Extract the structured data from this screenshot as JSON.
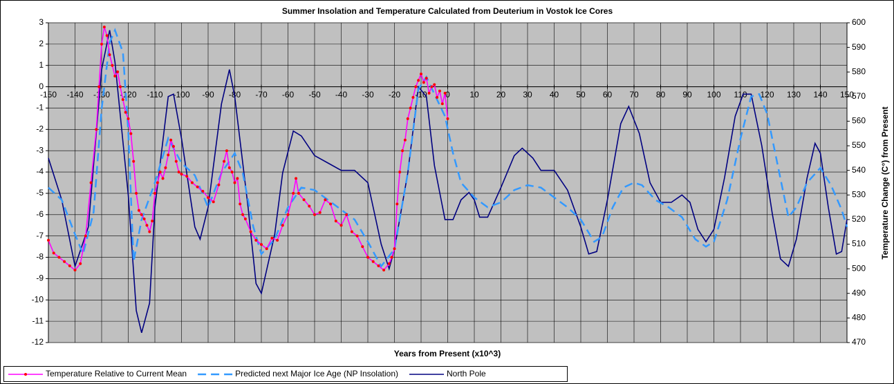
{
  "chart_data": {
    "type": "line",
    "title": "Summer Insolation and Temperature Calculated from Deuterium in Vostok Ice Cores",
    "xlabel": "Years from Present (x10^3)",
    "y2label": "Temperature Change (C°) from Present",
    "xlim": [
      -150,
      150
    ],
    "xticks": [
      -150,
      -140,
      -130,
      -120,
      -110,
      -100,
      -90,
      -80,
      -70,
      -60,
      -50,
      -40,
      -30,
      -20,
      -10,
      0,
      10,
      20,
      30,
      40,
      50,
      60,
      70,
      80,
      90,
      100,
      110,
      120,
      130,
      140,
      150
    ],
    "ylim": [
      -12,
      3
    ],
    "yticks": [
      -12,
      -11,
      -10,
      -9,
      -8,
      -7,
      -6,
      -5,
      -4,
      -3,
      -2,
      -1,
      0,
      1,
      2,
      3
    ],
    "y2lim": [
      470,
      600
    ],
    "y2ticks": [
      470,
      480,
      490,
      500,
      510,
      520,
      530,
      540,
      550,
      560,
      570,
      580,
      590,
      600
    ],
    "grid": true,
    "legend": "bottom",
    "series": [
      {
        "name": "Temperature Relative to Current Mean",
        "color": "#ff00ff",
        "marker_color": "#ff0000",
        "line_style": "solid",
        "x": [
          -150,
          -148,
          -146,
          -144,
          -142,
          -140,
          -138,
          -136,
          -134,
          -132,
          -131,
          -130,
          -129,
          -128,
          -127,
          -126,
          -125,
          -124,
          -123,
          -122,
          -121,
          -120,
          -119,
          -118,
          -117,
          -116,
          -115,
          -114,
          -113,
          -112,
          -111,
          -110,
          -109,
          -108,
          -107,
          -106,
          -105,
          -104,
          -103,
          -102,
          -101,
          -100,
          -98,
          -96,
          -94,
          -92,
          -90,
          -88,
          -86,
          -84,
          -83,
          -82,
          -81,
          -80,
          -79,
          -78,
          -77,
          -76,
          -74,
          -72,
          -70,
          -68,
          -66,
          -64,
          -62,
          -60,
          -58,
          -57,
          -56,
          -54,
          -52,
          -50,
          -48,
          -46,
          -44,
          -42,
          -40,
          -38,
          -36,
          -34,
          -32,
          -30,
          -28,
          -26,
          -24,
          -22,
          -21,
          -20,
          -19,
          -18,
          -17,
          -16,
          -15,
          -14,
          -13,
          -12,
          -11,
          -10,
          -9,
          -8,
          -7,
          -6,
          -5,
          -4,
          -3,
          -2,
          -1,
          0
        ],
        "values": [
          -7.2,
          -7.8,
          -8.0,
          -8.2,
          -8.4,
          -8.6,
          -8.3,
          -7.0,
          -4.5,
          -2.0,
          0,
          2.0,
          2.8,
          2.4,
          1.5,
          1.0,
          0.5,
          0.7,
          0,
          -0.6,
          -1.2,
          -1.5,
          -2.2,
          -3.5,
          -5.0,
          -5.8,
          -6.0,
          -6.2,
          -6.5,
          -6.8,
          -6.3,
          -5.0,
          -4.5,
          -4.0,
          -4.3,
          -3.8,
          -3.2,
          -2.5,
          -2.8,
          -3.5,
          -4.0,
          -4.1,
          -4.2,
          -4.5,
          -4.7,
          -4.9,
          -5.2,
          -5.4,
          -4.6,
          -3.5,
          -3.0,
          -3.8,
          -4.0,
          -4.5,
          -4.3,
          -5.5,
          -6.0,
          -6.2,
          -6.8,
          -7.2,
          -7.4,
          -7.6,
          -7.1,
          -7.2,
          -6.5,
          -6.0,
          -5.0,
          -4.3,
          -5.0,
          -5.3,
          -5.6,
          -6.0,
          -5.9,
          -5.3,
          -5.5,
          -6.3,
          -6.5,
          -6.0,
          -6.8,
          -7.0,
          -7.5,
          -8.0,
          -8.2,
          -8.4,
          -8.6,
          -8.3,
          -8.0,
          -7.6,
          -5.5,
          -4.0,
          -3.0,
          -2.5,
          -1.5,
          -1.0,
          -0.5,
          0,
          0.3,
          0.6,
          0.2,
          0.4,
          -0.3,
          0.0,
          0.1,
          -0.5,
          -0.2,
          -0.8,
          -0.3,
          -1.5
        ]
      },
      {
        "name": "Predicted next Major Ice Age (NP Insolation)",
        "color": "#3399ff",
        "line_style": "dashed",
        "axis": "y2",
        "x": [
          -150,
          -145,
          -140,
          -137,
          -133,
          -130,
          -127,
          -125,
          -122,
          -120,
          -118,
          -115,
          -110,
          -105,
          -100,
          -95,
          -90,
          -85,
          -80,
          -77,
          -73,
          -70,
          -65,
          -60,
          -55,
          -50,
          -45,
          -40,
          -35,
          -30,
          -25,
          -20,
          -15,
          -11,
          -8,
          -5,
          -1,
          2,
          5,
          10,
          15,
          20,
          25,
          30,
          35,
          40,
          45,
          50,
          55,
          58,
          62,
          66,
          70,
          73,
          78,
          83,
          88,
          93,
          97,
          100,
          105,
          110,
          114,
          117,
          120,
          124,
          128,
          131,
          135,
          140,
          144,
          148,
          150
        ],
        "values": [
          533,
          528,
          514,
          506,
          523,
          565,
          592,
          597,
          588,
          556,
          503,
          520,
          535,
          553,
          543,
          538,
          525,
          539,
          547,
          539,
          517,
          506,
          512,
          525,
          533,
          532,
          528,
          524,
          520,
          511,
          501,
          508,
          539,
          573,
          578,
          571,
          562,
          547,
          535,
          529,
          525,
          527,
          532,
          534,
          533,
          529,
          525,
          520,
          511,
          513,
          525,
          533,
          535,
          534,
          528,
          525,
          521,
          512,
          509,
          511,
          528,
          553,
          570,
          571,
          563,
          542,
          521,
          525,
          535,
          541,
          534,
          524,
          517
        ]
      },
      {
        "name": "North Pole",
        "color": "#000080",
        "line_style": "solid",
        "axis": "y2",
        "x": [
          -150,
          -145,
          -140,
          -135,
          -130,
          -127,
          -125,
          -120,
          -117,
          -115,
          -112,
          -110,
          -105,
          -103,
          -100,
          -95,
          -93,
          -90,
          -85,
          -82,
          -80,
          -75,
          -72,
          -70,
          -65,
          -62,
          -58,
          -55,
          -50,
          -45,
          -40,
          -35,
          -30,
          -25,
          -22,
          -20,
          -15,
          -11,
          -8,
          -5,
          -1,
          2,
          5,
          8,
          10,
          12,
          15,
          20,
          25,
          28,
          32,
          35,
          40,
          45,
          50,
          53,
          56,
          60,
          65,
          68,
          72,
          76,
          80,
          84,
          88,
          91,
          94,
          97,
          100,
          104,
          108,
          111,
          114,
          118,
          122,
          125,
          128,
          131,
          135,
          138,
          140,
          143,
          146,
          148,
          150
        ],
        "values": [
          545,
          528,
          501,
          517,
          581,
          597,
          584,
          530,
          483,
          474,
          486,
          525,
          570,
          571,
          553,
          517,
          512,
          525,
          567,
          581,
          570,
          525,
          494,
          490,
          514,
          539,
          556,
          554,
          546,
          543,
          540,
          540,
          535,
          510,
          500,
          508,
          539,
          574,
          570,
          542,
          520,
          520,
          528,
          531,
          528,
          521,
          521,
          533,
          546,
          549,
          545,
          540,
          540,
          532,
          517,
          506,
          507,
          528,
          559,
          566,
          555,
          535,
          527,
          527,
          530,
          527,
          516,
          511,
          516,
          537,
          562,
          571,
          571,
          550,
          522,
          504,
          501,
          512,
          537,
          551,
          547,
          525,
          506,
          507,
          520
        ]
      }
    ]
  }
}
